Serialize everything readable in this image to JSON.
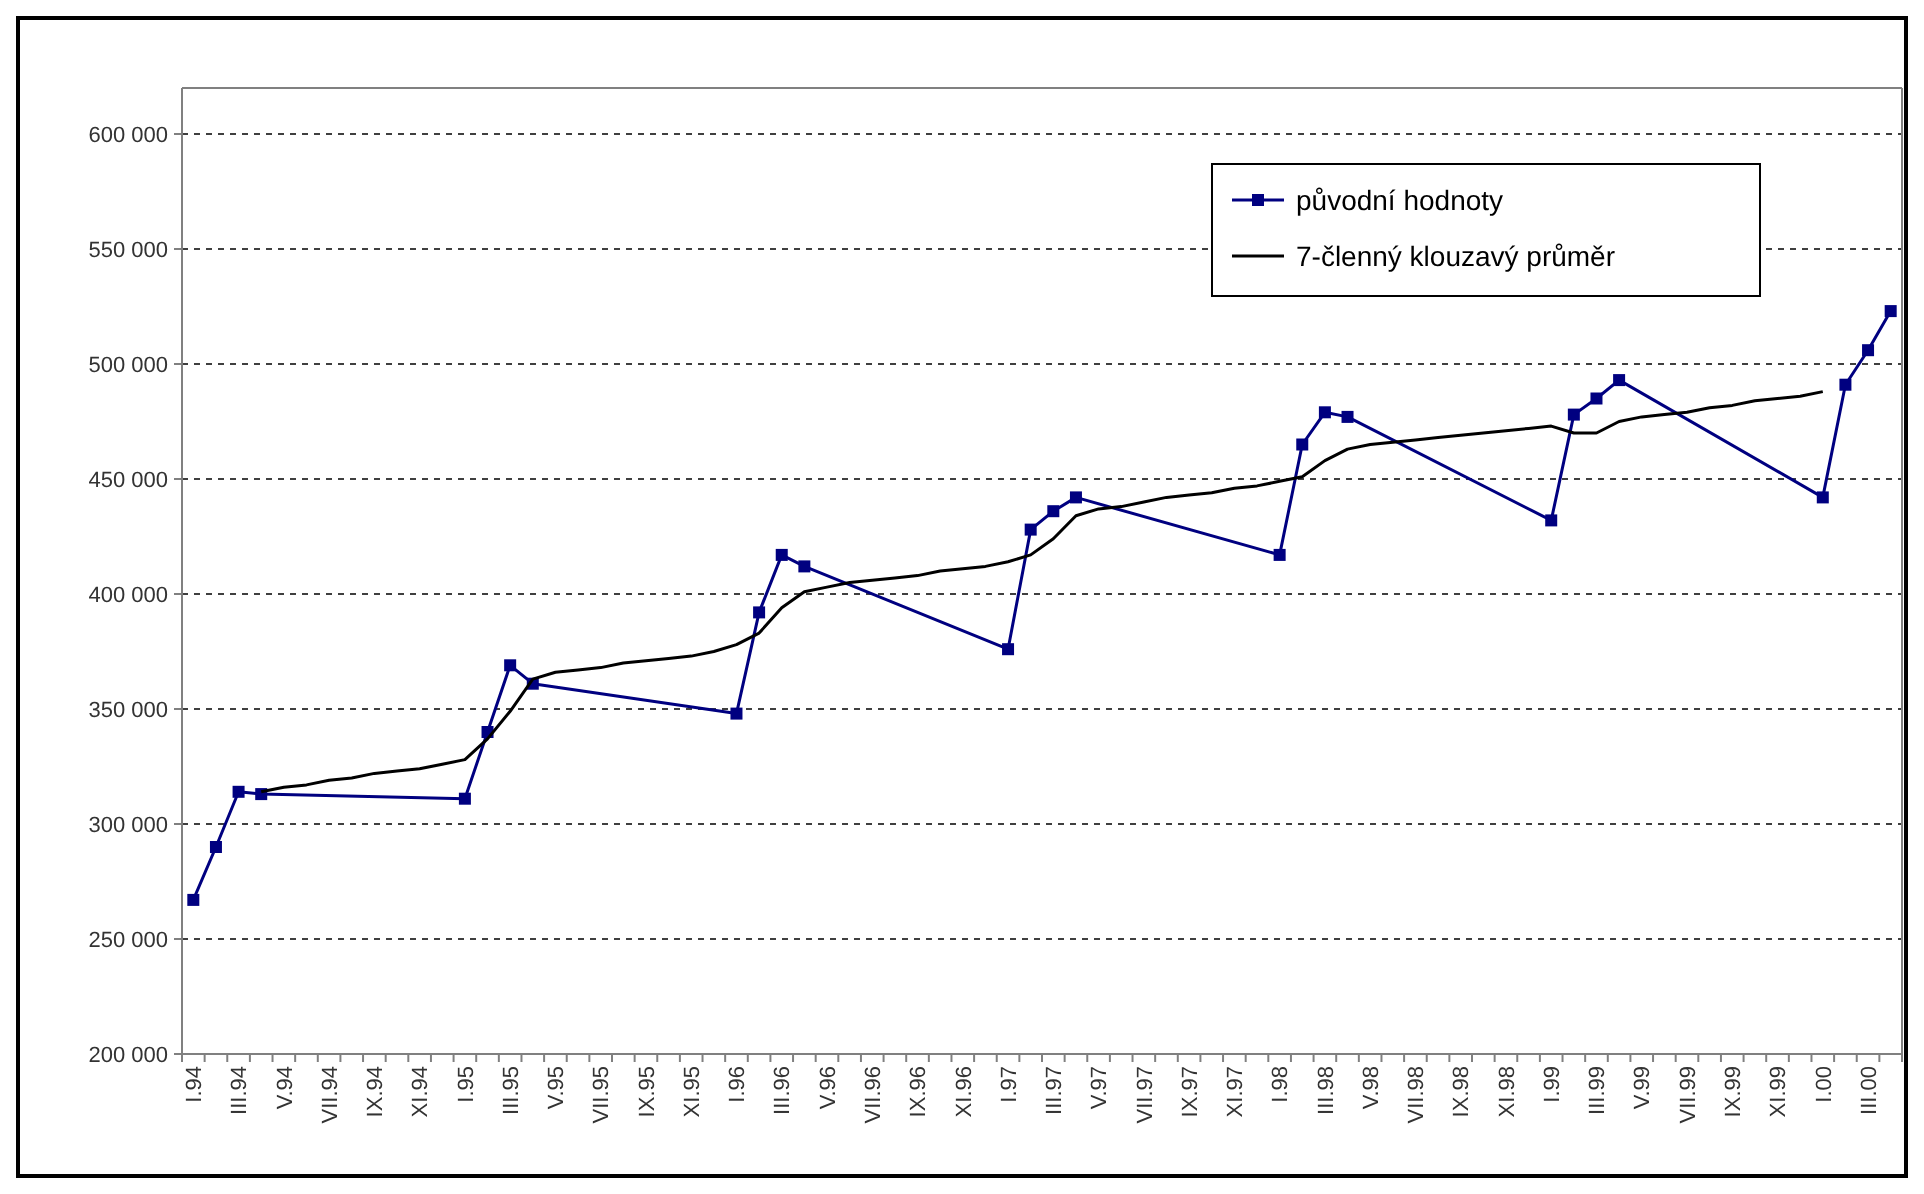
{
  "chart_data": {
    "type": "line",
    "categories": [
      "I.94",
      null,
      "III.94",
      null,
      "V.94",
      null,
      "VII.94",
      null,
      "IX.94",
      null,
      "XI.94",
      null,
      "I.95",
      null,
      "III.95",
      null,
      "V.95",
      null,
      "VII.95",
      null,
      "IX.95",
      null,
      "XI.95",
      null,
      "I.96",
      null,
      "III.96",
      null,
      "V.96",
      null,
      "VII.96",
      null,
      "IX.96",
      null,
      "XI.96",
      null,
      "I.97",
      null,
      "III.97",
      null,
      "V.97",
      null,
      "VII.97",
      null,
      "IX.97",
      null,
      "XI.97",
      null,
      "I.98",
      null,
      "III.98",
      null,
      "V.98",
      null,
      "VII.98",
      null,
      "IX.98",
      null,
      "XI.98",
      null,
      "I.99",
      null,
      "III.99",
      null,
      "V.99",
      null,
      "VII.99",
      null,
      "IX.99",
      null,
      "XI.99",
      null,
      "I.00",
      null,
      "III.00",
      null
    ],
    "series": [
      {
        "name": "původní hodnoty",
        "color": "#000080",
        "marker": "square",
        "values": [
          267000,
          290000,
          314000,
          313000,
          null,
          null,
          null,
          null,
          null,
          null,
          null,
          null,
          311000,
          340000,
          369000,
          361000,
          null,
          null,
          null,
          null,
          null,
          null,
          null,
          null,
          348000,
          392000,
          417000,
          412000,
          null,
          null,
          null,
          null,
          null,
          null,
          null,
          null,
          376000,
          428000,
          436000,
          442000,
          null,
          null,
          null,
          null,
          null,
          null,
          null,
          null,
          417000,
          465000,
          479000,
          477000,
          null,
          null,
          null,
          null,
          null,
          null,
          null,
          null,
          432000,
          478000,
          485000,
          493000,
          null,
          null,
          null,
          null,
          null,
          null,
          null,
          null,
          442000,
          491000,
          506000,
          523000
        ]
      },
      {
        "name": "7-členný klouzavý průměr",
        "color": "#000000",
        "marker": "none",
        "values": [
          null,
          null,
          null,
          314000,
          316000,
          317000,
          319000,
          320000,
          322000,
          323000,
          324000,
          326000,
          328000,
          337000,
          349000,
          363000,
          366000,
          367000,
          368000,
          370000,
          371000,
          372000,
          373000,
          375000,
          378000,
          383000,
          394000,
          401000,
          403000,
          405000,
          406000,
          407000,
          408000,
          410000,
          411000,
          412000,
          414000,
          417000,
          424000,
          434000,
          437000,
          438000,
          440000,
          442000,
          443000,
          444000,
          446000,
          447000,
          449000,
          451000,
          458000,
          463000,
          465000,
          466000,
          467000,
          468000,
          469000,
          470000,
          471000,
          472000,
          473000,
          470000,
          470000,
          475000,
          477000,
          478000,
          479000,
          481000,
          482000,
          484000,
          485000,
          486000,
          488000,
          null,
          null,
          null
        ]
      }
    ],
    "ylim": [
      200000,
      620000
    ],
    "yticks": [
      {
        "value": 200000,
        "label": "200 000"
      },
      {
        "value": 250000,
        "label": "250 000"
      },
      {
        "value": 300000,
        "label": "300 000"
      },
      {
        "value": 350000,
        "label": "350 000"
      },
      {
        "value": 400000,
        "label": "400 000"
      },
      {
        "value": 450000,
        "label": "450 000"
      },
      {
        "value": 500000,
        "label": "500 000"
      },
      {
        "value": 550000,
        "label": "550 000"
      },
      {
        "value": 600000,
        "label": "600 000"
      }
    ],
    "grid": "y",
    "legend": "top right",
    "line_style": "solid"
  }
}
